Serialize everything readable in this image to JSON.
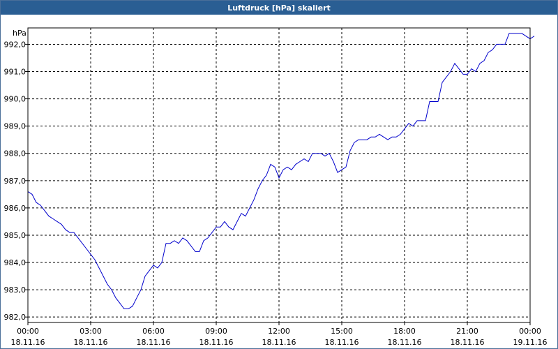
{
  "window": {
    "title": "Luftdruck [hPa] skaliert"
  },
  "colors": {
    "titlebar": "#2a5e93",
    "line": "#0000cc",
    "grid": "#000000"
  },
  "chart_data": {
    "type": "line",
    "title": "Luftdruck [hPa] skaliert",
    "ylabel": "hPa",
    "ylim": [
      981.8,
      992.6
    ],
    "y_ticks": [
      {
        "value": 982.0,
        "label": "982,0"
      },
      {
        "value": 983.0,
        "label": "983,0"
      },
      {
        "value": 984.0,
        "label": "984,0"
      },
      {
        "value": 985.0,
        "label": "985,0"
      },
      {
        "value": 986.0,
        "label": "986,0"
      },
      {
        "value": 987.0,
        "label": "987,0"
      },
      {
        "value": 988.0,
        "label": "988,0"
      },
      {
        "value": 989.0,
        "label": "989,0"
      },
      {
        "value": 990.0,
        "label": "990,0"
      },
      {
        "value": 991.0,
        "label": "991,0"
      },
      {
        "value": 992.0,
        "label": "992,0"
      }
    ],
    "xlim": [
      0,
      24
    ],
    "x_ticks": [
      {
        "value": 0,
        "time": "00:00",
        "date": "18.11.16"
      },
      {
        "value": 3,
        "time": "03:00",
        "date": "18.11.16"
      },
      {
        "value": 6,
        "time": "06:00",
        "date": "18.11.16"
      },
      {
        "value": 9,
        "time": "09:00",
        "date": "18.11.16"
      },
      {
        "value": 12,
        "time": "12:00",
        "date": "18.11.16"
      },
      {
        "value": 15,
        "time": "15:00",
        "date": "18.11.16"
      },
      {
        "value": 18,
        "time": "18:00",
        "date": "18.11.16"
      },
      {
        "value": 21,
        "time": "21:00",
        "date": "18.11.16"
      },
      {
        "value": 24,
        "time": "00:00",
        "date": "19.11.16"
      }
    ],
    "grid": true,
    "series": [
      {
        "name": "",
        "points": [
          [
            0.0,
            986.6
          ],
          [
            0.2,
            986.5
          ],
          [
            0.4,
            986.2
          ],
          [
            0.6,
            986.1
          ],
          [
            0.8,
            985.9
          ],
          [
            1.0,
            985.7
          ],
          [
            1.2,
            985.6
          ],
          [
            1.4,
            985.5
          ],
          [
            1.6,
            985.4
          ],
          [
            1.8,
            985.2
          ],
          [
            2.0,
            985.1
          ],
          [
            2.2,
            985.1
          ],
          [
            2.4,
            984.9
          ],
          [
            2.6,
            984.7
          ],
          [
            2.8,
            984.5
          ],
          [
            3.0,
            984.3
          ],
          [
            3.2,
            984.1
          ],
          [
            3.4,
            983.8
          ],
          [
            3.6,
            983.5
          ],
          [
            3.8,
            983.2
          ],
          [
            4.0,
            983.0
          ],
          [
            4.2,
            982.7
          ],
          [
            4.4,
            982.5
          ],
          [
            4.6,
            982.3
          ],
          [
            4.8,
            982.3
          ],
          [
            5.0,
            982.4
          ],
          [
            5.2,
            982.7
          ],
          [
            5.4,
            983.0
          ],
          [
            5.6,
            983.5
          ],
          [
            5.8,
            983.7
          ],
          [
            6.0,
            983.9
          ],
          [
            6.2,
            983.8
          ],
          [
            6.4,
            984.0
          ],
          [
            6.6,
            984.7
          ],
          [
            6.8,
            984.7
          ],
          [
            7.0,
            984.8
          ],
          [
            7.2,
            984.7
          ],
          [
            7.4,
            984.9
          ],
          [
            7.6,
            984.8
          ],
          [
            7.8,
            984.6
          ],
          [
            8.0,
            984.4
          ],
          [
            8.2,
            984.4
          ],
          [
            8.4,
            984.8
          ],
          [
            8.6,
            984.9
          ],
          [
            8.8,
            985.1
          ],
          [
            9.0,
            985.3
          ],
          [
            9.2,
            985.3
          ],
          [
            9.4,
            985.5
          ],
          [
            9.6,
            985.3
          ],
          [
            9.8,
            985.2
          ],
          [
            10.0,
            985.5
          ],
          [
            10.2,
            985.8
          ],
          [
            10.4,
            985.7
          ],
          [
            10.6,
            986.0
          ],
          [
            10.8,
            986.3
          ],
          [
            11.0,
            986.7
          ],
          [
            11.2,
            987.0
          ],
          [
            11.4,
            987.2
          ],
          [
            11.6,
            987.6
          ],
          [
            11.8,
            987.5
          ],
          [
            12.0,
            987.1
          ],
          [
            12.2,
            987.4
          ],
          [
            12.4,
            987.5
          ],
          [
            12.6,
            987.4
          ],
          [
            12.8,
            987.6
          ],
          [
            13.0,
            987.7
          ],
          [
            13.2,
            987.8
          ],
          [
            13.4,
            987.7
          ],
          [
            13.6,
            988.0
          ],
          [
            13.8,
            988.0
          ],
          [
            14.0,
            988.0
          ],
          [
            14.2,
            987.9
          ],
          [
            14.4,
            988.0
          ],
          [
            14.6,
            987.7
          ],
          [
            14.8,
            987.3
          ],
          [
            15.0,
            987.4
          ],
          [
            15.2,
            987.5
          ],
          [
            15.4,
            988.1
          ],
          [
            15.6,
            988.4
          ],
          [
            15.8,
            988.5
          ],
          [
            16.0,
            988.5
          ],
          [
            16.2,
            988.5
          ],
          [
            16.4,
            988.6
          ],
          [
            16.6,
            988.6
          ],
          [
            16.8,
            988.7
          ],
          [
            17.0,
            988.6
          ],
          [
            17.2,
            988.5
          ],
          [
            17.4,
            988.6
          ],
          [
            17.6,
            988.6
          ],
          [
            17.8,
            988.7
          ],
          [
            18.0,
            988.9
          ],
          [
            18.2,
            989.1
          ],
          [
            18.4,
            989.0
          ],
          [
            18.6,
            989.2
          ],
          [
            18.8,
            989.2
          ],
          [
            19.0,
            989.2
          ],
          [
            19.2,
            989.9
          ],
          [
            19.4,
            989.9
          ],
          [
            19.6,
            989.9
          ],
          [
            19.8,
            990.6
          ],
          [
            20.0,
            990.8
          ],
          [
            20.2,
            991.0
          ],
          [
            20.4,
            991.3
          ],
          [
            20.6,
            991.1
          ],
          [
            20.8,
            990.9
          ],
          [
            21.0,
            990.9
          ],
          [
            21.2,
            991.1
          ],
          [
            21.4,
            991.0
          ],
          [
            21.6,
            991.3
          ],
          [
            21.8,
            991.4
          ],
          [
            22.0,
            991.7
          ],
          [
            22.2,
            991.8
          ],
          [
            22.4,
            992.0
          ],
          [
            22.6,
            992.0
          ],
          [
            22.8,
            992.0
          ],
          [
            23.0,
            992.4
          ],
          [
            23.2,
            992.4
          ],
          [
            23.4,
            992.4
          ],
          [
            23.6,
            992.4
          ],
          [
            23.8,
            992.3
          ],
          [
            24.0,
            992.2
          ],
          [
            24.2,
            992.3
          ]
        ]
      }
    ]
  }
}
